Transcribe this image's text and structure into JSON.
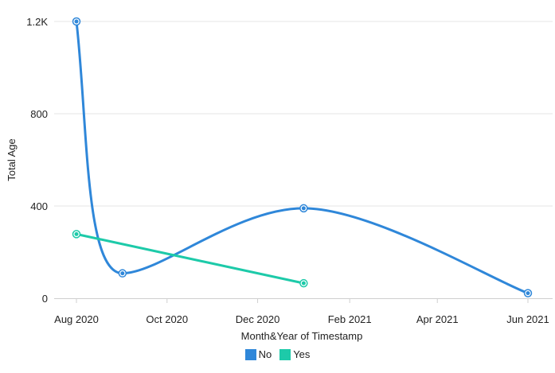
{
  "chart_data": {
    "type": "line",
    "xlabel": "Month&Year of Timestamp",
    "ylabel": "Total Age",
    "x_ticks": [
      {
        "label": "Aug 2020",
        "date": "2020-08-01"
      },
      {
        "label": "Oct 2020",
        "date": "2020-10-01"
      },
      {
        "label": "Dec 2020",
        "date": "2020-12-01"
      },
      {
        "label": "Feb 2021",
        "date": "2021-02-01"
      },
      {
        "label": "Apr 2021",
        "date": "2021-04-01"
      },
      {
        "label": "Jun 2021",
        "date": "2021-06-01"
      }
    ],
    "y_ticks": [
      {
        "label": "0",
        "value": 0
      },
      {
        "label": "400",
        "value": 400
      },
      {
        "label": "800",
        "value": 800
      },
      {
        "label": "1.2K",
        "value": 1200
      }
    ],
    "ylim": [
      0,
      1200
    ],
    "grid": true,
    "legend_position": "bottom",
    "series": [
      {
        "name": "No",
        "color": "#2f87d9",
        "points": [
          {
            "x": "2020-08-01",
            "y": 1200
          },
          {
            "x": "2020-09-01",
            "y": 108
          },
          {
            "x": "2021-01-01",
            "y": 390
          },
          {
            "x": "2021-06-01",
            "y": 22
          }
        ]
      },
      {
        "name": "Yes",
        "color": "#1dcaa9",
        "points": [
          {
            "x": "2020-08-01",
            "y": 278
          },
          {
            "x": "2021-01-01",
            "y": 65
          }
        ]
      }
    ]
  }
}
